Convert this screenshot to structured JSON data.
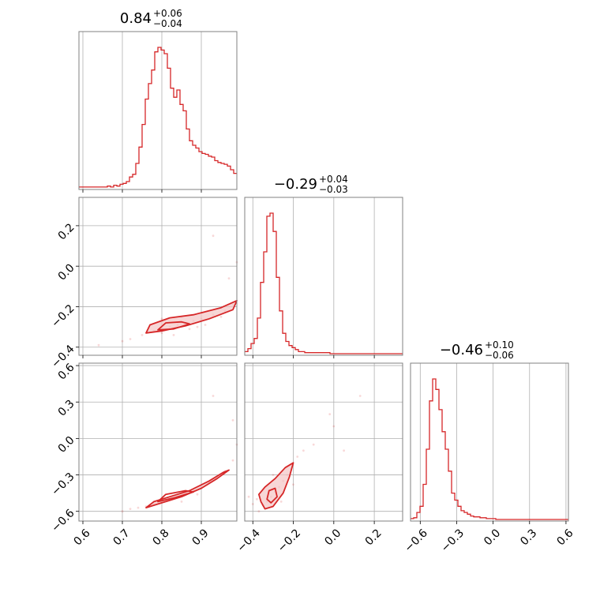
{
  "chart_data": {
    "type": "corner",
    "color": "#d62728",
    "fill_color": "#f4c4c5",
    "grid": true,
    "parameters": [
      {
        "range": [
          0.59,
          0.99
        ],
        "ticks": [
          0.6,
          0.7,
          0.8,
          0.9
        ],
        "tick_labels": [
          "0.6",
          "0.7",
          "0.8",
          "0.9"
        ]
      },
      {
        "range": [
          -0.44,
          0.34
        ],
        "ticks": [
          -0.4,
          -0.2,
          0.0,
          0.2
        ],
        "tick_labels": [
          "−0.4",
          "−0.2",
          "0.0",
          "0.2"
        ]
      },
      {
        "range": [
          -0.68,
          0.62
        ],
        "ticks": [
          -0.6,
          -0.3,
          0.0,
          0.3,
          0.6
        ],
        "tick_labels": [
          "−0.6",
          "−0.3",
          "0.0",
          "0.3",
          "0.6"
        ]
      }
    ],
    "titles": [
      {
        "median": "0.84",
        "plus": "+0.06",
        "minus": "−0.04"
      },
      {
        "median": "−0.29",
        "plus": "+0.04",
        "minus": "−0.03"
      },
      {
        "median": "−0.46",
        "plus": "+0.10",
        "minus": "−0.06"
      }
    ],
    "histograms": [
      {
        "bin_edges_start": 0.59,
        "bin_width": 0.008,
        "counts": [
          1,
          1,
          1,
          1,
          1,
          1,
          1,
          1,
          1,
          2,
          1,
          3,
          2,
          4,
          5,
          7,
          12,
          15,
          27,
          45,
          70,
          98,
          115,
          130,
          150,
          155,
          152,
          148,
          132,
          110,
          100,
          108,
          92,
          85,
          65,
          52,
          47,
          44,
          40,
          38,
          37,
          35,
          34,
          30,
          28,
          27,
          26,
          24,
          20,
          16
        ]
      },
      {
        "bin_edges_start": -0.44,
        "bin_width": 0.0156,
        "counts": [
          2,
          5,
          10,
          15,
          35,
          70,
          100,
          135,
          138,
          120,
          75,
          42,
          20,
          12,
          8,
          6,
          4,
          2,
          2,
          1,
          1,
          1,
          1,
          1,
          1,
          1,
          1,
          0,
          0,
          0,
          0,
          0,
          0,
          0,
          0,
          0,
          0,
          0,
          0,
          0,
          0,
          0,
          0,
          0,
          0,
          0,
          0,
          0,
          0,
          0
        ]
      },
      {
        "bin_edges_start": -0.68,
        "bin_width": 0.026,
        "counts": [
          1,
          2,
          8,
          15,
          40,
          80,
          135,
          160,
          148,
          125,
          100,
          80,
          55,
          30,
          22,
          15,
          10,
          8,
          6,
          4,
          3,
          3,
          2,
          2,
          1,
          1,
          1,
          0,
          0,
          0,
          0,
          0,
          0,
          0,
          0,
          0,
          0,
          0,
          0,
          0,
          0,
          0,
          0,
          0,
          0,
          0,
          0,
          0,
          0,
          0
        ]
      }
    ],
    "pairs": [
      {
        "x_param": 0,
        "y_param": 1,
        "contour_fill": [
          [
            0.76,
            -0.33
          ],
          [
            0.8,
            -0.32
          ],
          [
            0.86,
            -0.295
          ],
          [
            0.92,
            -0.26
          ],
          [
            0.98,
            -0.215
          ],
          [
            0.99,
            -0.17
          ],
          [
            0.95,
            -0.205
          ],
          [
            0.88,
            -0.24
          ],
          [
            0.82,
            -0.255
          ],
          [
            0.77,
            -0.29
          ]
        ],
        "contour_inner": [
          [
            0.79,
            -0.315
          ],
          [
            0.83,
            -0.31
          ],
          [
            0.87,
            -0.285
          ],
          [
            0.85,
            -0.275
          ],
          [
            0.81,
            -0.28
          ]
        ],
        "points": [
          [
            0.78,
            -0.32
          ],
          [
            0.8,
            -0.33
          ],
          [
            0.82,
            -0.3
          ],
          [
            0.84,
            -0.29
          ],
          [
            0.86,
            -0.28
          ],
          [
            0.88,
            -0.27
          ],
          [
            0.9,
            -0.26
          ],
          [
            0.93,
            -0.24
          ],
          [
            0.96,
            -0.22
          ],
          [
            0.98,
            -0.19
          ],
          [
            0.75,
            -0.34
          ],
          [
            0.72,
            -0.36
          ],
          [
            0.83,
            -0.34
          ],
          [
            0.87,
            -0.31
          ],
          [
            0.91,
            -0.29
          ],
          [
            0.97,
            -0.06
          ],
          [
            0.99,
            0.02
          ],
          [
            0.93,
            0.15
          ],
          [
            0.8,
            -0.26
          ],
          [
            0.85,
            -0.25
          ],
          [
            0.64,
            -0.39
          ],
          [
            0.7,
            -0.37
          ],
          [
            0.89,
            -0.3
          ],
          [
            0.95,
            -0.25
          ]
        ]
      },
      {
        "x_param": 0,
        "y_param": 2,
        "contour_fill": [
          [
            0.76,
            -0.57
          ],
          [
            0.8,
            -0.53
          ],
          [
            0.85,
            -0.48
          ],
          [
            0.9,
            -0.41
          ],
          [
            0.94,
            -0.33
          ],
          [
            0.97,
            -0.26
          ],
          [
            0.955,
            -0.28
          ],
          [
            0.92,
            -0.35
          ],
          [
            0.87,
            -0.43
          ],
          [
            0.82,
            -0.48
          ],
          [
            0.78,
            -0.52
          ]
        ],
        "contour_inner": [
          [
            0.79,
            -0.52
          ],
          [
            0.83,
            -0.49
          ],
          [
            0.88,
            -0.44
          ],
          [
            0.86,
            -0.43
          ],
          [
            0.81,
            -0.46
          ]
        ],
        "points": [
          [
            0.76,
            -0.56
          ],
          [
            0.78,
            -0.54
          ],
          [
            0.8,
            -0.52
          ],
          [
            0.82,
            -0.5
          ],
          [
            0.84,
            -0.48
          ],
          [
            0.86,
            -0.46
          ],
          [
            0.88,
            -0.43
          ],
          [
            0.9,
            -0.4
          ],
          [
            0.92,
            -0.36
          ],
          [
            0.94,
            -0.32
          ],
          [
            0.96,
            -0.27
          ],
          [
            0.98,
            -0.18
          ],
          [
            0.99,
            -0.05
          ],
          [
            0.72,
            -0.58
          ],
          [
            0.74,
            -0.57
          ],
          [
            0.7,
            -0.6
          ],
          [
            0.98,
            0.15
          ],
          [
            0.93,
            0.35
          ],
          [
            0.85,
            -0.52
          ],
          [
            0.89,
            -0.46
          ]
        ]
      },
      {
        "x_param": 1,
        "y_param": 2,
        "contour_fill": [
          [
            -0.36,
            -0.52
          ],
          [
            -0.34,
            -0.58
          ],
          [
            -0.3,
            -0.56
          ],
          [
            -0.25,
            -0.45
          ],
          [
            -0.22,
            -0.32
          ],
          [
            -0.2,
            -0.2
          ],
          [
            -0.24,
            -0.24
          ],
          [
            -0.29,
            -0.33
          ],
          [
            -0.34,
            -0.4
          ],
          [
            -0.37,
            -0.46
          ]
        ],
        "contour_inner": [
          [
            -0.33,
            -0.5
          ],
          [
            -0.31,
            -0.53
          ],
          [
            -0.28,
            -0.48
          ],
          [
            -0.29,
            -0.41
          ],
          [
            -0.32,
            -0.43
          ]
        ],
        "points": [
          [
            -0.35,
            -0.55
          ],
          [
            -0.33,
            -0.52
          ],
          [
            -0.31,
            -0.48
          ],
          [
            -0.29,
            -0.44
          ],
          [
            -0.27,
            -0.4
          ],
          [
            -0.25,
            -0.35
          ],
          [
            -0.23,
            -0.3
          ],
          [
            -0.21,
            -0.25
          ],
          [
            -0.38,
            -0.5
          ],
          [
            -0.4,
            -0.54
          ],
          [
            -0.42,
            -0.48
          ],
          [
            -0.37,
            -0.6
          ],
          [
            -0.26,
            -0.52
          ],
          [
            -0.18,
            -0.15
          ],
          [
            -0.15,
            -0.1
          ],
          [
            0.0,
            0.1
          ],
          [
            0.05,
            -0.1
          ],
          [
            -0.02,
            0.2
          ],
          [
            0.13,
            0.35
          ],
          [
            -0.1,
            -0.05
          ],
          [
            -0.3,
            -0.3
          ],
          [
            -0.2,
            -0.38
          ]
        ]
      }
    ]
  }
}
